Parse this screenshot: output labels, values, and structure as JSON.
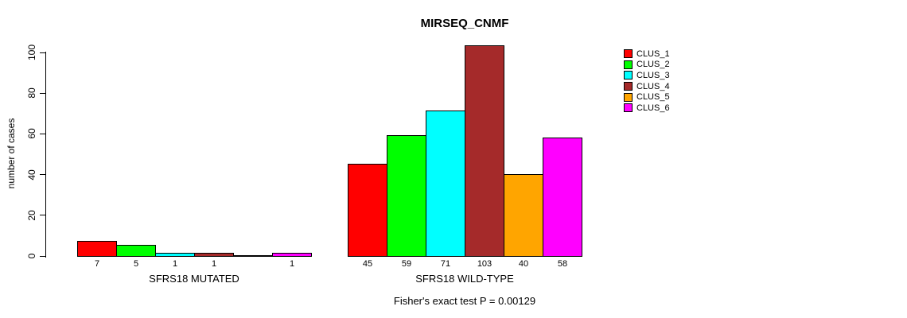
{
  "chart_data": {
    "type": "bar",
    "title": "MIRSEQ_CNMF",
    "ylabel": "number of cases",
    "xlabel": "",
    "ylim": [
      0,
      100
    ],
    "yticks": [
      0,
      20,
      40,
      60,
      80,
      100
    ],
    "grid": false,
    "legend_position": "right",
    "series_names": [
      "CLUS_1",
      "CLUS_2",
      "CLUS_3",
      "CLUS_4",
      "CLUS_5",
      "CLUS_6"
    ],
    "series_colors": [
      "#FF0000",
      "#00FF00",
      "#00FFFF",
      "#A52A2A",
      "#FFA500",
      "#FF00FF"
    ],
    "groups": [
      {
        "label": "SFRS18 MUTATED",
        "values": [
          7,
          5,
          1,
          1,
          0,
          1
        ],
        "bar_labels": [
          "7",
          "5",
          "1",
          "1",
          "",
          "1"
        ]
      },
      {
        "label": "SFRS18 WILD-TYPE",
        "values": [
          45,
          59,
          71,
          103,
          40,
          58
        ],
        "bar_labels": [
          "45",
          "59",
          "71",
          "103",
          "40",
          "58"
        ]
      }
    ],
    "annotation": "Fisher's exact test P = 0.00129"
  },
  "legend": {
    "items": [
      {
        "label": "CLUS_1",
        "color": "#FF0000"
      },
      {
        "label": "CLUS_2",
        "color": "#00FF00"
      },
      {
        "label": "CLUS_3",
        "color": "#00FFFF"
      },
      {
        "label": "CLUS_4",
        "color": "#A52A2A"
      },
      {
        "label": "CLUS_5",
        "color": "#FFA500"
      },
      {
        "label": "CLUS_6",
        "color": "#FF00FF"
      }
    ]
  }
}
